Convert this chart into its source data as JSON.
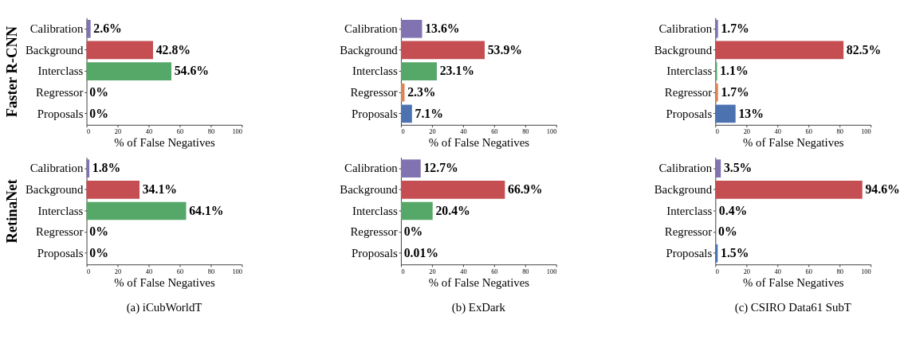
{
  "chart_data": [
    {
      "type": "bar",
      "orientation": "horizontal",
      "ylabel": "Faster R-CNN",
      "xlabel": "% of False Negatives",
      "categories": [
        "Calibration",
        "Background",
        "Interclass",
        "Regressor",
        "Proposals"
      ],
      "values": [
        2.6,
        42.8,
        54.6,
        0,
        0
      ],
      "value_labels": [
        "2.6%",
        "42.8%",
        "54.6%",
        "0%",
        "0%"
      ],
      "colors": [
        "#8172b2",
        "#c44e52",
        "#55a868",
        "#dd8452",
        "#4c72b0"
      ],
      "xlim": [
        0,
        100
      ],
      "xticks": [
        0,
        20,
        40,
        60,
        80,
        100
      ]
    },
    {
      "type": "bar",
      "orientation": "horizontal",
      "xlabel": "% of False Negatives",
      "categories": [
        "Calibration",
        "Background",
        "Interclass",
        "Regressor",
        "Proposals"
      ],
      "values": [
        13.6,
        53.9,
        23.1,
        2.3,
        7.1
      ],
      "value_labels": [
        "13.6%",
        "53.9%",
        "23.1%",
        "2.3%",
        "7.1%"
      ],
      "colors": [
        "#8172b2",
        "#c44e52",
        "#55a868",
        "#dd8452",
        "#4c72b0"
      ],
      "xlim": [
        0,
        100
      ],
      "xticks": [
        0,
        20,
        40,
        60,
        80,
        100
      ]
    },
    {
      "type": "bar",
      "orientation": "horizontal",
      "xlabel": "% of False Negatives",
      "categories": [
        "Calibration",
        "Background",
        "Interclass",
        "Regressor",
        "Proposals"
      ],
      "values": [
        1.7,
        82.5,
        1.1,
        1.7,
        13
      ],
      "value_labels": [
        "1.7%",
        "82.5%",
        "1.1%",
        "1.7%",
        "13%"
      ],
      "colors": [
        "#8172b2",
        "#c44e52",
        "#55a868",
        "#dd8452",
        "#4c72b0"
      ],
      "xlim": [
        0,
        100
      ],
      "xticks": [
        0,
        20,
        40,
        60,
        80,
        100
      ]
    },
    {
      "type": "bar",
      "orientation": "horizontal",
      "ylabel": "RetinaNet",
      "xlabel": "% of False Negatives",
      "categories": [
        "Calibration",
        "Background",
        "Interclass",
        "Regressor",
        "Proposals"
      ],
      "values": [
        1.8,
        34.1,
        64.1,
        0,
        0
      ],
      "value_labels": [
        "1.8%",
        "34.1%",
        "64.1%",
        "0%",
        "0%"
      ],
      "colors": [
        "#8172b2",
        "#c44e52",
        "#55a868",
        "#dd8452",
        "#4c72b0"
      ],
      "xlim": [
        0,
        100
      ],
      "xticks": [
        0,
        20,
        40,
        60,
        80,
        100
      ],
      "annotations": [
        "(a) iCubWorldT"
      ]
    },
    {
      "type": "bar",
      "orientation": "horizontal",
      "xlabel": "% of False Negatives",
      "categories": [
        "Calibration",
        "Background",
        "Interclass",
        "Regressor",
        "Proposals"
      ],
      "values": [
        12.7,
        66.9,
        20.4,
        0,
        0.01
      ],
      "value_labels": [
        "12.7%",
        "66.9%",
        "20.4%",
        "0%",
        "0.01%"
      ],
      "colors": [
        "#8172b2",
        "#c44e52",
        "#55a868",
        "#dd8452",
        "#4c72b0"
      ],
      "xlim": [
        0,
        100
      ],
      "xticks": [
        0,
        20,
        40,
        60,
        80,
        100
      ],
      "annotations": [
        "(b) ExDark"
      ]
    },
    {
      "type": "bar",
      "orientation": "horizontal",
      "xlabel": "% of False Negatives",
      "categories": [
        "Calibration",
        "Background",
        "Interclass",
        "Regressor",
        "Proposals"
      ],
      "values": [
        3.5,
        94.6,
        0.4,
        0,
        1.5
      ],
      "value_labels": [
        "3.5%",
        "94.6%",
        "0.4%",
        "0%",
        "1.5%"
      ],
      "colors": [
        "#8172b2",
        "#c44e52",
        "#55a868",
        "#dd8452",
        "#4c72b0"
      ],
      "xlim": [
        0,
        100
      ],
      "xticks": [
        0,
        20,
        40,
        60,
        80,
        100
      ],
      "annotations": [
        "(c) CSIRO Data61 SubT"
      ]
    }
  ]
}
